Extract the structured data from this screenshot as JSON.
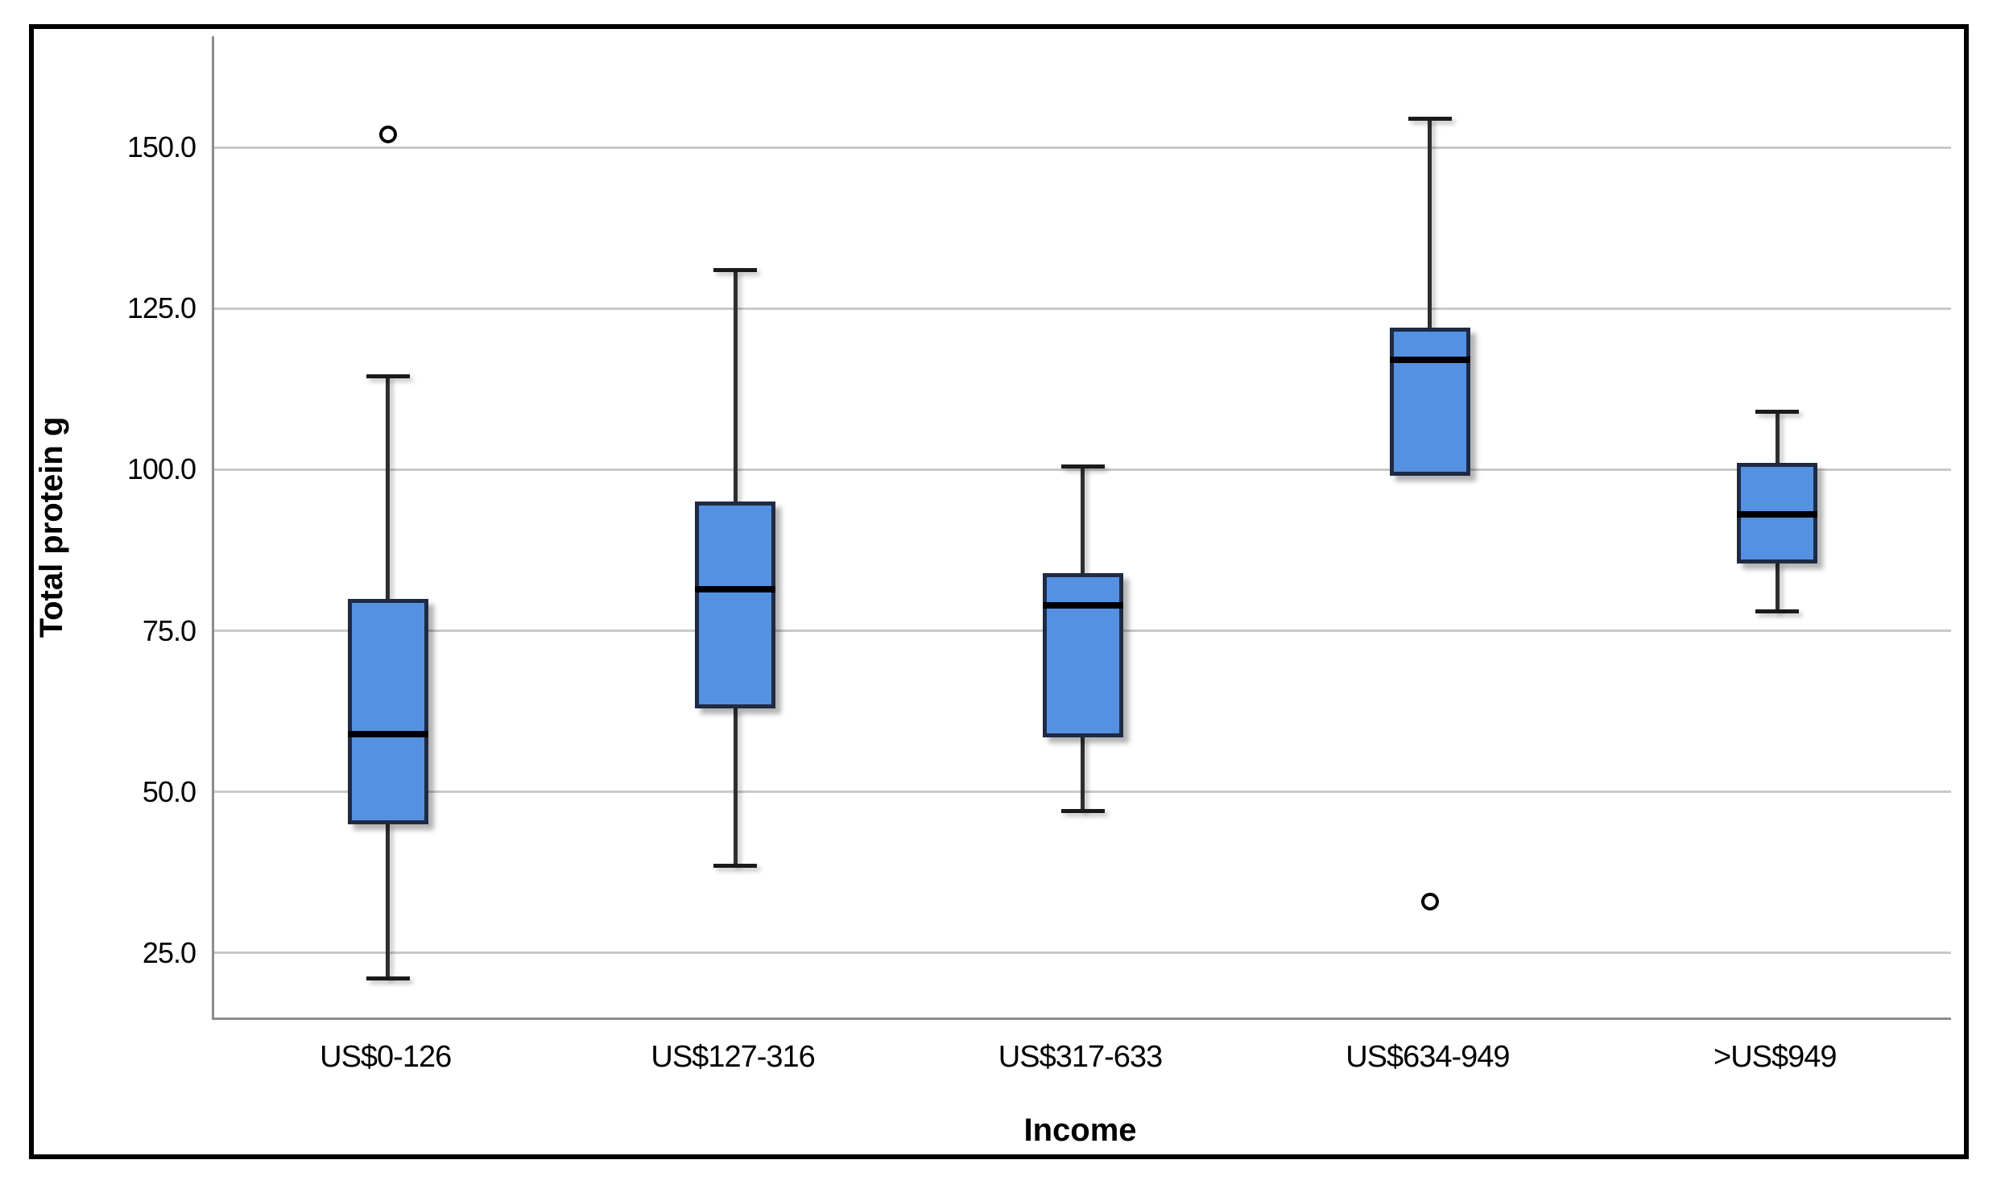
{
  "figure": {
    "y_axis_title": "Total protein g",
    "x_axis_title": "Income"
  },
  "chart_data": {
    "type": "boxplot",
    "title": "",
    "xlabel": "Income",
    "ylabel": "Total protein g",
    "ylim": [
      15,
      167.25
    ],
    "grid": true,
    "y_ticks": [
      25.0,
      50.0,
      75.0,
      100.0,
      125.0,
      150.0
    ],
    "y_tick_labels": [
      "25.0",
      "50.0",
      "75.0",
      "100.0",
      "125.0",
      "150.0"
    ],
    "categories": [
      "US$0-126",
      "US$127-316",
      "US$317-633",
      "US$634-949",
      ">US$949"
    ],
    "boxes": [
      {
        "category": "US$0-126",
        "whisker_low": 21,
        "q1": 45,
        "median": 59,
        "q3": 80,
        "whisker_high": 114.5,
        "outliers": [
          152
        ]
      },
      {
        "category": "US$127-316",
        "whisker_low": 38.5,
        "q1": 63,
        "median": 81.5,
        "q3": 95,
        "whisker_high": 131,
        "outliers": []
      },
      {
        "category": "US$317-633",
        "whisker_low": 47,
        "q1": 58.5,
        "median": 79,
        "q3": 84,
        "whisker_high": 100.5,
        "outliers": []
      },
      {
        "category": "US$634-949",
        "whisker_low": 99,
        "q1": 99,
        "median": 117,
        "q3": 122,
        "whisker_high": 154.5,
        "outliers": [
          33
        ]
      },
      {
        "category": ">US$949",
        "whisker_low": 78,
        "q1": 85.5,
        "median": 93,
        "q3": 101,
        "whisker_high": 109,
        "outliers": []
      }
    ],
    "colors": {
      "box_fill": "#5591E1",
      "box_border": "#1F2A44",
      "median": "#000000",
      "whisker": "#2E2E2E",
      "gridline": "#C9C9C9",
      "axis_line": "#8C8C8C",
      "outlier_stroke": "#000000",
      "figure_border": "#000000",
      "background": "#FFFFFF"
    }
  }
}
